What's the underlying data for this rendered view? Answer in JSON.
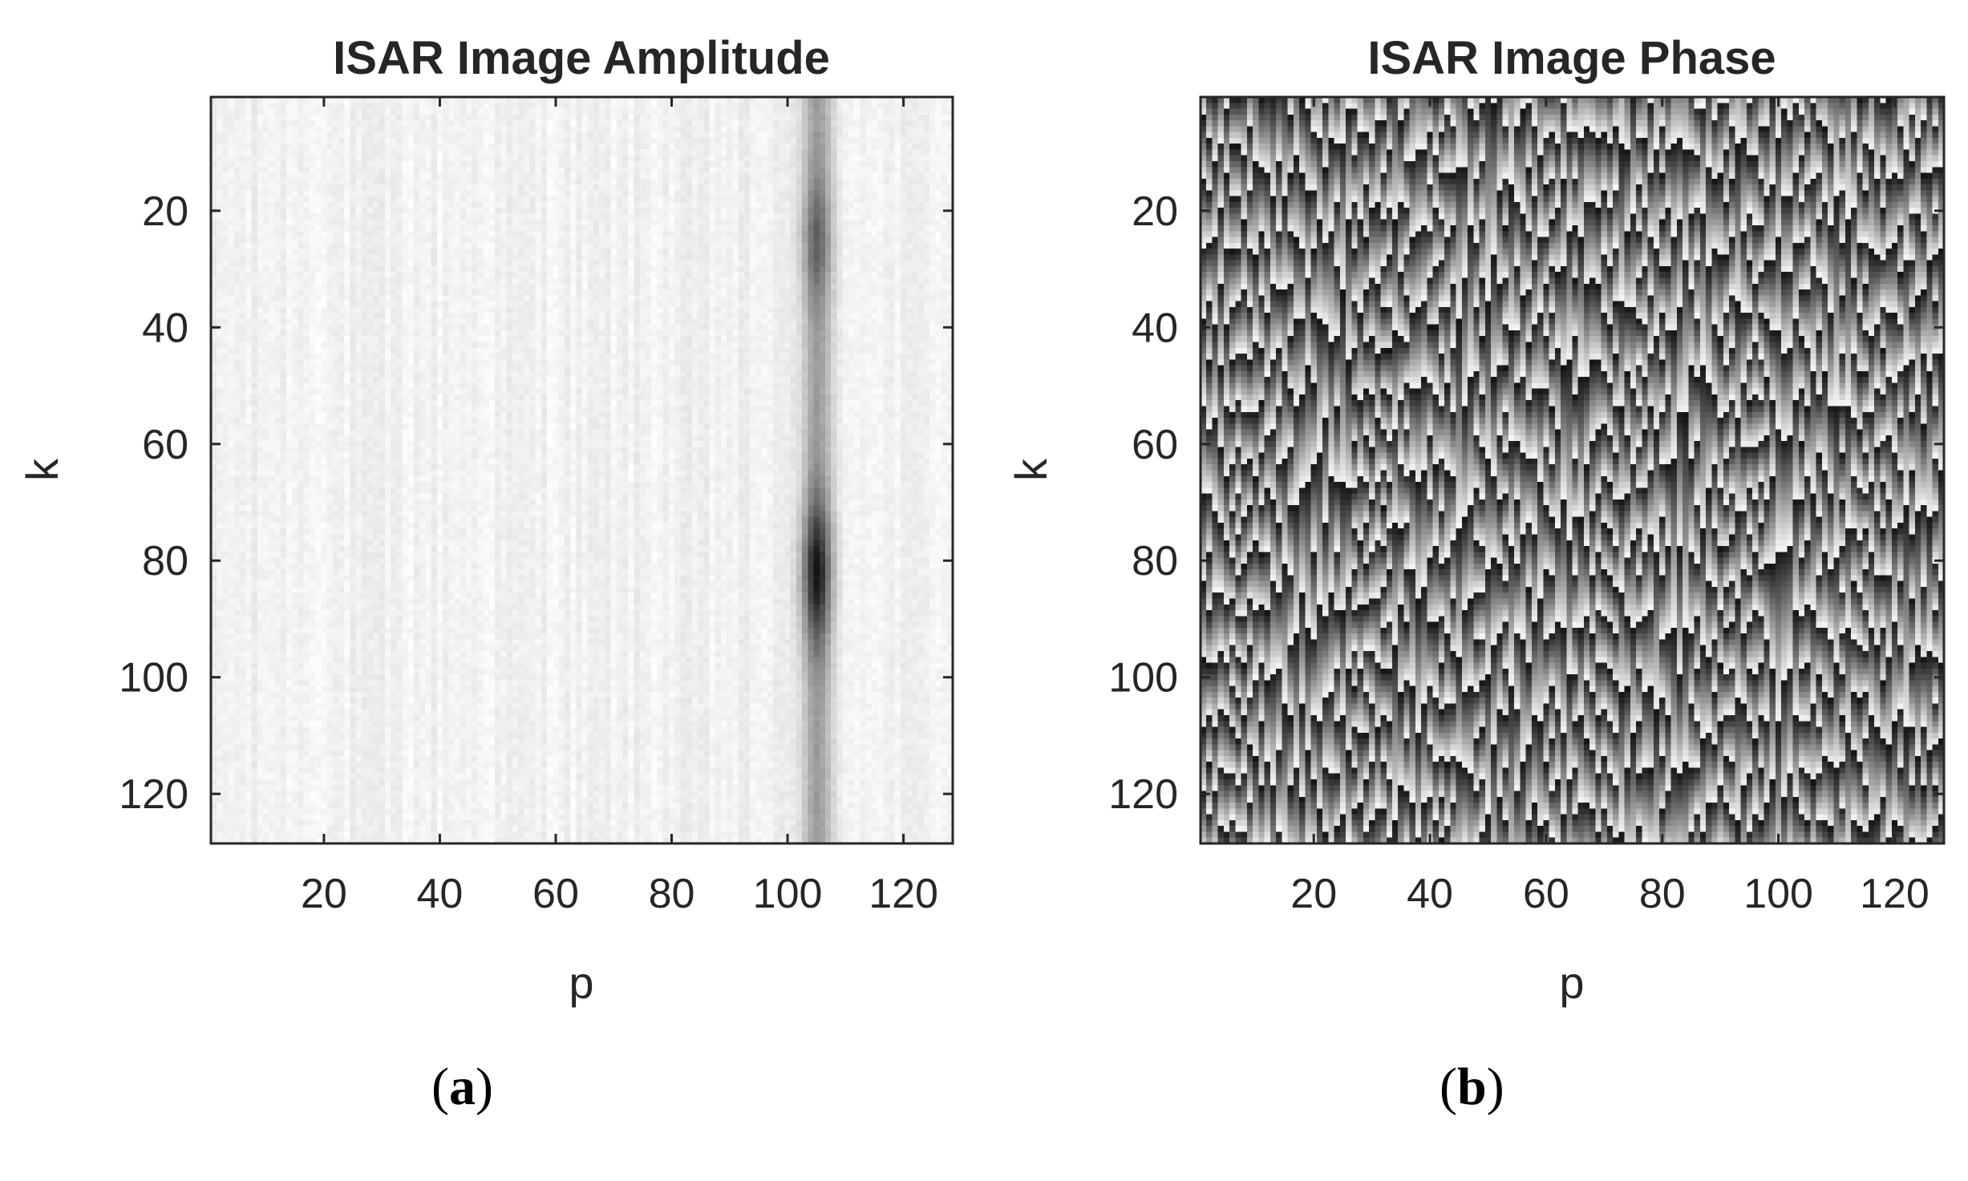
{
  "chart_data": [
    {
      "type": "heatmap",
      "panel": "a",
      "title": "ISAR Image Amplitude",
      "xlabel": "p",
      "ylabel": "k",
      "xlim": [
        1,
        128
      ],
      "ylim": [
        1,
        128
      ],
      "y_reversed": true,
      "xticks": [
        20,
        40,
        60,
        80,
        100,
        120
      ],
      "yticks": [
        20,
        40,
        60,
        80,
        100,
        120
      ],
      "colormap": "gray-reversed (white = low amplitude, black = high)",
      "dominant_feature": {
        "description": "strong scatterer ridge",
        "p_range": [
          100,
          110
        ],
        "k_peak": 82
      },
      "grid": false
    },
    {
      "type": "heatmap",
      "panel": "b",
      "title": "ISAR Image Phase",
      "xlabel": "p",
      "ylabel": "k",
      "xlim": [
        1,
        128
      ],
      "ylim": [
        1,
        128
      ],
      "y_reversed": true,
      "xticks": [
        20,
        40,
        60,
        80,
        100,
        120
      ],
      "yticks": [
        20,
        40,
        60,
        80,
        100,
        120
      ],
      "colormap": "gray",
      "phase_range": [
        -3.1416,
        3.1416
      ],
      "grid": false
    }
  ],
  "captions": {
    "a": {
      "open": "(",
      "letter": "a",
      "close": ")"
    },
    "b": {
      "open": "(",
      "letter": "b",
      "close": ")"
    }
  }
}
